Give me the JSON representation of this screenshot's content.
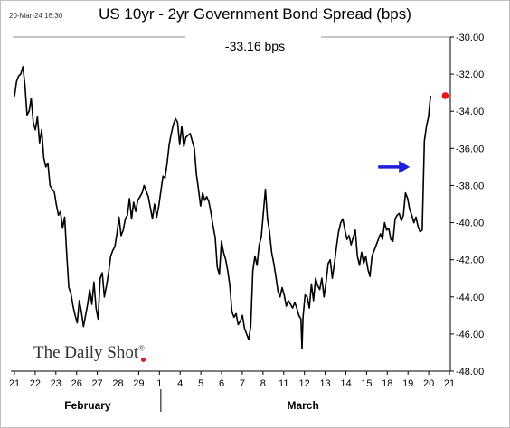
{
  "header": {
    "timestamp": "20-Mar-24 16:30",
    "title": "US 10yr - 2yr Government Bond Spread (bps)",
    "latest_value": "-33.16 bps"
  },
  "source": {
    "logo_text": "The Daily Shot",
    "logo_mark": "®"
  },
  "colors": {
    "line": "#000000",
    "last_point": "#e31a1c",
    "arrow": "#1f1fd8",
    "axis": "#000000"
  },
  "chart_data": {
    "type": "line",
    "title": "US 10yr - 2yr Government Bond Spread (bps)",
    "xlabel": "",
    "ylabel": "",
    "ylim": [
      -48,
      -30
    ],
    "yticks": [
      -30,
      -32,
      -34,
      -36,
      -38,
      -40,
      -42,
      -44,
      -46,
      -48
    ],
    "ytick_labels": [
      "-30.00",
      "-32.00",
      "-34.00",
      "-36.00",
      "-38.00",
      "-40.00",
      "-42.00",
      "-44.00",
      "-46.00",
      "-48.00"
    ],
    "y_axis_side": "right",
    "xlim": [
      0,
      20.8
    ],
    "x_unit": "trading day index from Feb 21 (Feb 21 = 0; Mar 21 = 20.8)",
    "xtick_labels": [
      "21",
      "22",
      "23",
      "26",
      "27",
      "28",
      "29",
      "1",
      "4",
      "5",
      "6",
      "7",
      "8",
      "11",
      "12",
      "13",
      "14",
      "15",
      "18",
      "19",
      "20",
      "21"
    ],
    "month_labels": [
      {
        "text": "February",
        "x": 3.5
      },
      {
        "text": "March",
        "x": 13.8
      }
    ],
    "month_separator_x": 7.0,
    "grid": false,
    "annotations": [
      {
        "type": "arrow",
        "direction": "right",
        "x": 18.3,
        "y": -37.0
      },
      {
        "type": "marker",
        "x": 20.6,
        "y": -33.16
      }
    ],
    "series": [
      {
        "values": [
          [
            0.0,
            -33.2
          ],
          [
            0.1,
            -32.4
          ],
          [
            0.2,
            -32.1
          ],
          [
            0.3,
            -32.0
          ],
          [
            0.4,
            -31.6
          ],
          [
            0.5,
            -32.6
          ],
          [
            0.6,
            -34.2
          ],
          [
            0.7,
            -34.0
          ],
          [
            0.8,
            -33.3
          ],
          [
            0.9,
            -34.6
          ],
          [
            1.0,
            -35.0
          ],
          [
            1.1,
            -34.3
          ],
          [
            1.2,
            -35.7
          ],
          [
            1.3,
            -35.0
          ],
          [
            1.4,
            -36.5
          ],
          [
            1.5,
            -37.0
          ],
          [
            1.6,
            -36.8
          ],
          [
            1.7,
            -38.0
          ],
          [
            1.8,
            -38.2
          ],
          [
            1.9,
            -38.3
          ],
          [
            2.0,
            -39.0
          ],
          [
            2.1,
            -39.6
          ],
          [
            2.2,
            -39.4
          ],
          [
            2.3,
            -40.3
          ],
          [
            2.4,
            -39.7
          ],
          [
            2.5,
            -41.7
          ],
          [
            2.6,
            -43.5
          ],
          [
            2.7,
            -43.8
          ],
          [
            2.8,
            -44.5
          ],
          [
            2.9,
            -45.0
          ],
          [
            3.0,
            -45.4
          ],
          [
            3.1,
            -44.2
          ],
          [
            3.2,
            -44.8
          ],
          [
            3.3,
            -45.6
          ],
          [
            3.4,
            -45.0
          ],
          [
            3.5,
            -44.4
          ],
          [
            3.6,
            -43.6
          ],
          [
            3.7,
            -44.4
          ],
          [
            3.8,
            -43.2
          ],
          [
            3.9,
            -44.6
          ],
          [
            4.0,
            -45.2
          ],
          [
            4.1,
            -43.0
          ],
          [
            4.2,
            -42.7
          ],
          [
            4.3,
            -44.0
          ],
          [
            4.4,
            -43.4
          ],
          [
            4.5,
            -42.7
          ],
          [
            4.6,
            -41.8
          ],
          [
            4.7,
            -41.5
          ],
          [
            4.8,
            -41.3
          ],
          [
            4.9,
            -40.6
          ],
          [
            5.0,
            -39.7
          ],
          [
            5.1,
            -40.7
          ],
          [
            5.2,
            -40.4
          ],
          [
            5.3,
            -39.8
          ],
          [
            5.4,
            -39.6
          ],
          [
            5.5,
            -38.7
          ],
          [
            5.6,
            -39.8
          ],
          [
            5.7,
            -38.9
          ],
          [
            5.8,
            -39.4
          ],
          [
            5.9,
            -38.8
          ],
          [
            6.0,
            -38.6
          ],
          [
            6.1,
            -38.4
          ],
          [
            6.2,
            -38.0
          ],
          [
            6.3,
            -38.3
          ],
          [
            6.4,
            -38.6
          ],
          [
            6.5,
            -39.2
          ],
          [
            6.6,
            -39.8
          ],
          [
            6.7,
            -39.0
          ],
          [
            6.8,
            -39.7
          ],
          [
            6.9,
            -39.1
          ],
          [
            7.0,
            -38.3
          ],
          [
            7.1,
            -37.5
          ],
          [
            7.2,
            -37.6
          ],
          [
            7.3,
            -36.8
          ],
          [
            7.4,
            -35.8
          ],
          [
            7.5,
            -35.2
          ],
          [
            7.6,
            -34.7
          ],
          [
            7.7,
            -34.4
          ],
          [
            7.8,
            -34.6
          ],
          [
            7.9,
            -35.8
          ],
          [
            8.0,
            -34.8
          ],
          [
            8.1,
            -35.9
          ],
          [
            8.2,
            -35.4
          ],
          [
            8.3,
            -35.3
          ],
          [
            8.4,
            -35.2
          ],
          [
            8.5,
            -35.6
          ],
          [
            8.6,
            -36.0
          ],
          [
            8.7,
            -37.4
          ],
          [
            8.8,
            -38.2
          ],
          [
            8.9,
            -39.1
          ],
          [
            9.0,
            -38.4
          ],
          [
            9.1,
            -38.8
          ],
          [
            9.2,
            -38.6
          ],
          [
            9.3,
            -38.9
          ],
          [
            9.4,
            -39.5
          ],
          [
            9.5,
            -40.2
          ],
          [
            9.6,
            -40.8
          ],
          [
            9.7,
            -42.4
          ],
          [
            9.8,
            -42.8
          ],
          [
            9.9,
            -41.0
          ],
          [
            10.0,
            -41.6
          ],
          [
            10.1,
            -42.0
          ],
          [
            10.2,
            -42.6
          ],
          [
            10.3,
            -43.4
          ],
          [
            10.4,
            -44.8
          ],
          [
            10.5,
            -45.1
          ],
          [
            10.6,
            -44.9
          ],
          [
            10.7,
            -45.5
          ],
          [
            10.8,
            -45.3
          ],
          [
            10.9,
            -45.0
          ],
          [
            11.0,
            -45.7
          ],
          [
            11.1,
            -46.0
          ],
          [
            11.2,
            -46.3
          ],
          [
            11.3,
            -45.6
          ],
          [
            11.4,
            -42.6
          ],
          [
            11.5,
            -41.8
          ],
          [
            11.6,
            -42.3
          ],
          [
            11.7,
            -41.2
          ],
          [
            11.8,
            -40.8
          ],
          [
            11.9,
            -39.5
          ],
          [
            12.0,
            -38.2
          ],
          [
            12.1,
            -39.8
          ],
          [
            12.2,
            -40.5
          ],
          [
            12.3,
            -41.6
          ],
          [
            12.4,
            -42.2
          ],
          [
            12.5,
            -42.9
          ],
          [
            12.6,
            -43.7
          ],
          [
            12.7,
            -44.0
          ],
          [
            12.8,
            -43.5
          ],
          [
            12.9,
            -43.9
          ],
          [
            13.0,
            -44.5
          ],
          [
            13.1,
            -44.2
          ],
          [
            13.2,
            -44.4
          ],
          [
            13.3,
            -44.6
          ],
          [
            13.4,
            -44.3
          ],
          [
            13.5,
            -44.6
          ],
          [
            13.6,
            -45.0
          ],
          [
            13.7,
            -45.2
          ],
          [
            13.75,
            -46.8
          ],
          [
            13.8,
            -45.1
          ],
          [
            13.9,
            -43.9
          ],
          [
            14.0,
            -44.0
          ],
          [
            14.1,
            -44.6
          ],
          [
            14.2,
            -43.3
          ],
          [
            14.3,
            -44.2
          ],
          [
            14.4,
            -43.0
          ],
          [
            14.5,
            -43.4
          ],
          [
            14.6,
            -43.6
          ],
          [
            14.7,
            -43.0
          ],
          [
            14.8,
            -44.0
          ],
          [
            14.9,
            -43.2
          ],
          [
            15.0,
            -42.2
          ],
          [
            15.1,
            -42.0
          ],
          [
            15.2,
            -43.0
          ],
          [
            15.3,
            -42.2
          ],
          [
            15.4,
            -41.3
          ],
          [
            15.5,
            -40.5
          ],
          [
            15.6,
            -40.0
          ],
          [
            15.7,
            -39.8
          ],
          [
            15.8,
            -40.4
          ],
          [
            15.9,
            -40.9
          ],
          [
            16.0,
            -40.7
          ],
          [
            16.1,
            -41.2
          ],
          [
            16.2,
            -40.8
          ],
          [
            16.3,
            -40.4
          ],
          [
            16.4,
            -41.8
          ],
          [
            16.5,
            -42.3
          ],
          [
            16.6,
            -41.6
          ],
          [
            16.7,
            -42.2
          ],
          [
            16.8,
            -41.8
          ],
          [
            16.9,
            -42.5
          ],
          [
            17.0,
            -42.9
          ],
          [
            17.1,
            -41.8
          ],
          [
            17.2,
            -41.5
          ],
          [
            17.3,
            -41.2
          ],
          [
            17.4,
            -40.9
          ],
          [
            17.5,
            -40.6
          ],
          [
            17.6,
            -40.9
          ],
          [
            17.7,
            -40.0
          ],
          [
            17.8,
            -40.4
          ],
          [
            17.9,
            -40.3
          ],
          [
            18.0,
            -40.9
          ],
          [
            18.1,
            -41.0
          ],
          [
            18.2,
            -39.8
          ],
          [
            18.3,
            -39.6
          ],
          [
            18.4,
            -39.5
          ],
          [
            18.5,
            -39.9
          ],
          [
            18.6,
            -39.6
          ],
          [
            18.7,
            -38.4
          ],
          [
            18.8,
            -38.7
          ],
          [
            18.9,
            -39.3
          ],
          [
            19.0,
            -39.6
          ],
          [
            19.1,
            -40.0
          ],
          [
            19.2,
            -39.7
          ],
          [
            19.3,
            -40.2
          ],
          [
            19.4,
            -40.5
          ],
          [
            19.5,
            -40.4
          ],
          [
            19.6,
            -35.6
          ],
          [
            19.7,
            -34.8
          ],
          [
            19.8,
            -34.3
          ],
          [
            19.85,
            -33.7
          ],
          [
            19.9,
            -33.16
          ]
        ]
      }
    ]
  }
}
